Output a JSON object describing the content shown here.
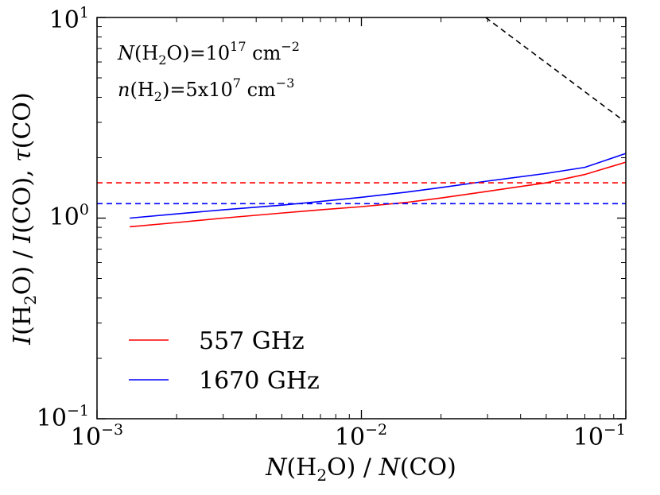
{
  "chart_data": {
    "type": "line",
    "xscale": "log",
    "yscale": "log",
    "xlim": [
      0.001,
      0.1
    ],
    "ylim": [
      0.1,
      10
    ],
    "xlabel": "N(H2O) / N(CO)",
    "ylabel": "I(H2O) / I(CO), τ(CO)",
    "xticks": [
      "10^-3",
      "10^-2",
      "10^-1"
    ],
    "yticks": [
      "10^-1",
      "10^0",
      "10^1"
    ],
    "annotations": [
      "N(H2O)=10^17 cm^-2",
      "n(H2)=5x10^7 cm^-3"
    ],
    "legend_position": "lower-left",
    "series": [
      {
        "name": "557 GHz",
        "style": "solid",
        "color": "#ff0000",
        "x": [
          0.00133,
          0.002,
          0.003,
          0.005,
          0.007,
          0.01,
          0.015,
          0.02,
          0.03,
          0.05,
          0.07,
          0.1
        ],
        "y": [
          0.905,
          0.95,
          1.0,
          1.06,
          1.1,
          1.14,
          1.2,
          1.26,
          1.36,
          1.5,
          1.65,
          1.9
        ]
      },
      {
        "name": "1670 GHz",
        "style": "solid",
        "color": "#0000ff",
        "x": [
          0.00133,
          0.002,
          0.003,
          0.005,
          0.007,
          0.01,
          0.015,
          0.02,
          0.03,
          0.05,
          0.07,
          0.1
        ],
        "y": [
          1.0,
          1.05,
          1.1,
          1.16,
          1.21,
          1.27,
          1.35,
          1.42,
          1.53,
          1.67,
          1.79,
          2.1
        ]
      },
      {
        "style": "dashed",
        "color": "#ff0000",
        "x": [
          0.001,
          0.1
        ],
        "y": [
          1.5,
          1.5
        ]
      },
      {
        "style": "dashed",
        "color": "#0000ff",
        "x": [
          0.001,
          0.1
        ],
        "y": [
          1.18,
          1.18
        ]
      },
      {
        "style": "dashed",
        "color": "#000000",
        "x": [
          0.0295,
          0.1
        ],
        "y": [
          10,
          3.0
        ]
      }
    ]
  }
}
